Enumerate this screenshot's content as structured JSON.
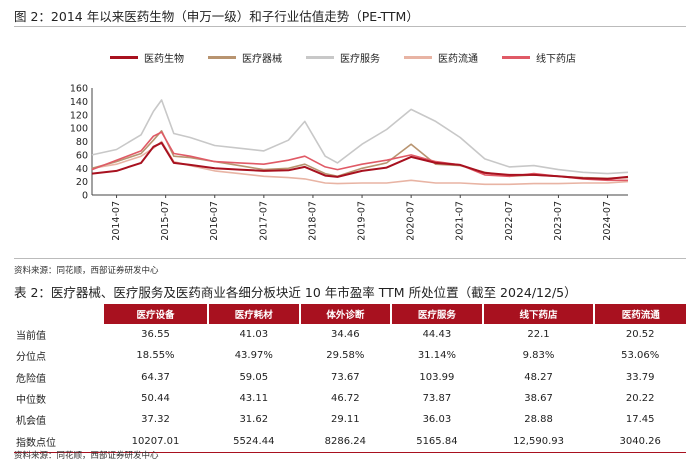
{
  "figure": {
    "title": "图 2：2014 年以来医药生物（申万一级）和子行业估值走势（PE-TTM）",
    "source": "资料来源：同花顺，西部证券研发中心"
  },
  "chart_data": {
    "type": "line",
    "title": "图 2：2014 年以来医药生物（申万一级）和子行业估值走势（PE-TTM）",
    "x_ticks": [
      "2014-07",
      "2015-07",
      "2016-07",
      "2017-07",
      "2018-07",
      "2019-07",
      "2020-07",
      "2021-07",
      "2022-07",
      "2023-07",
      "2024-07"
    ],
    "x": [
      "2014-01",
      "2014-07",
      "2015-01",
      "2015-04",
      "2015-06",
      "2015-09",
      "2016-01",
      "2016-07",
      "2017-01",
      "2017-07",
      "2018-01",
      "2018-05",
      "2018-10",
      "2019-01",
      "2019-07",
      "2020-01",
      "2020-07",
      "2021-01",
      "2021-07",
      "2022-01",
      "2022-07",
      "2023-01",
      "2023-07",
      "2024-01",
      "2024-07",
      "2024-12"
    ],
    "ylim": [
      0,
      160
    ],
    "yticks": [
      0,
      20,
      40,
      60,
      80,
      100,
      120,
      140,
      160
    ],
    "legend_position": "top",
    "series": [
      {
        "name": "医药生物",
        "color": "#a8111f",
        "values": [
          32,
          36,
          48,
          72,
          78,
          48,
          45,
          40,
          38,
          36,
          37,
          42,
          29,
          27,
          36,
          41,
          57,
          48,
          45,
          33,
          30,
          30,
          28,
          25,
          24,
          27
        ]
      },
      {
        "name": "医疗器械",
        "color": "#b89470",
        "values": [
          40,
          50,
          62,
          82,
          96,
          58,
          56,
          50,
          44,
          38,
          40,
          46,
          32,
          28,
          40,
          48,
          76,
          46,
          44,
          34,
          28,
          30,
          28,
          26,
          25,
          26
        ]
      },
      {
        "name": "医疗服务",
        "color": "#c8c8c8",
        "values": [
          60,
          68,
          90,
          125,
          142,
          92,
          86,
          74,
          70,
          66,
          82,
          110,
          58,
          48,
          76,
          98,
          128,
          110,
          86,
          54,
          42,
          44,
          38,
          34,
          32,
          34
        ]
      },
      {
        "name": "医药流通",
        "color": "#e8b4a4",
        "values": [
          40,
          46,
          58,
          70,
          80,
          50,
          44,
          36,
          32,
          28,
          26,
          24,
          18,
          17,
          18,
          18,
          22,
          18,
          18,
          16,
          16,
          17,
          17,
          18,
          18,
          20
        ]
      },
      {
        "name": "线下药店",
        "color": "#e05a66",
        "values": [
          38,
          52,
          66,
          88,
          94,
          62,
          58,
          50,
          48,
          46,
          52,
          58,
          42,
          38,
          46,
          52,
          60,
          50,
          45,
          30,
          28,
          32,
          28,
          24,
          22,
          22
        ]
      }
    ]
  },
  "table": {
    "title": "表 2：医疗器械、医疗服务及医药商业各细分板块近 10 年市盈率 TTM 所处位置（截至 2024/12/5）",
    "headers": [
      "医疗设备",
      "医疗耗材",
      "体外诊断",
      "医疗服务",
      "线下药店",
      "医药流通"
    ],
    "rows": [
      {
        "label": "当前值",
        "values": [
          "36.55",
          "41.03",
          "34.46",
          "44.43",
          "22.1",
          "20.52"
        ]
      },
      {
        "label": "分位点",
        "values": [
          "18.55%",
          "43.97%",
          "29.58%",
          "31.14%",
          "9.83%",
          "53.06%"
        ]
      },
      {
        "label": "危险值",
        "values": [
          "64.37",
          "59.05",
          "73.67",
          "103.99",
          "48.27",
          "33.79"
        ]
      },
      {
        "label": "中位数",
        "values": [
          "50.44",
          "43.11",
          "46.72",
          "73.87",
          "38.67",
          "20.22"
        ]
      },
      {
        "label": "机会值",
        "values": [
          "37.32",
          "31.62",
          "29.11",
          "36.03",
          "28.88",
          "17.45"
        ]
      },
      {
        "label": "指数点位",
        "values": [
          "10207.01",
          "5524.44",
          "8286.24",
          "5165.84",
          "12,590.93",
          "3040.26"
        ]
      }
    ],
    "source": "资料来源：同花顺，西部证券研发中心"
  }
}
